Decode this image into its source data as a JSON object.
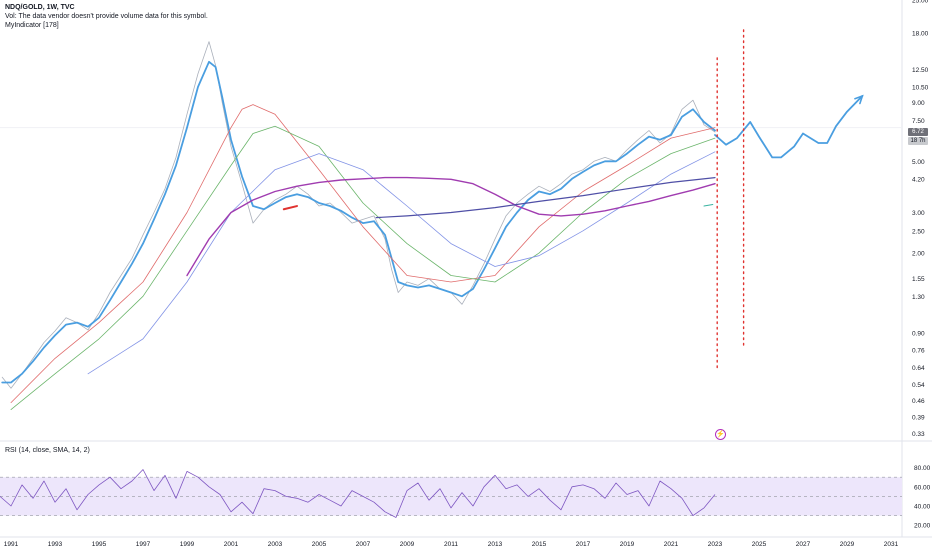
{
  "header": {
    "symbol_line": "NDQ/GOLD, 1W, TVC",
    "volume_note": "Vol: The data vendor doesn't provide volume data for this symbol.",
    "indicator": "MyIndicator [178]"
  },
  "rsi_header": "RSI (14, close, SMA, 14, 2)",
  "price_badge": "6.72",
  "time_badge": "18 7h",
  "chart_data": [
    {
      "type": "line",
      "scale": "log",
      "ylim": [
        0.31,
        25
      ],
      "xlim": [
        1990.5,
        2031.5
      ],
      "y_ticks": [
        "25.00",
        "18.00",
        "12.50",
        "10.50",
        "9.00",
        "7.50",
        "5.00",
        "4.20",
        "3.00",
        "2.50",
        "2.00",
        "1.55",
        "1.30",
        "0.90",
        "0.76",
        "0.64",
        "0.54",
        "0.46",
        "0.39",
        "0.33"
      ],
      "x_ticks": [
        "1991",
        "1993",
        "1995",
        "1997",
        "1999",
        "2001",
        "2003",
        "2005",
        "2007",
        "2009",
        "2011",
        "2013",
        "2015",
        "2017",
        "2019",
        "2021",
        "2023",
        "2025",
        "2027",
        "2029",
        "2031"
      ],
      "series": [
        {
          "color": "#aab0bb",
          "x": [
            1990.6,
            1991,
            1991.5,
            1992,
            1992.5,
            1993,
            1993.5,
            1994,
            1994.5,
            1995,
            1995.5,
            1996,
            1996.5,
            1997,
            1997.5,
            1998,
            1998.5,
            1999,
            1999.5,
            2000,
            2000.3,
            2000.6,
            2001,
            2001.5,
            2002,
            2002.5,
            2003,
            2003.5,
            2004,
            2004.5,
            2005,
            2005.5,
            2006,
            2006.5,
            2007,
            2007.5,
            2008,
            2008.3,
            2008.6,
            2009,
            2009.5,
            2010,
            2010.5,
            2011,
            2011.5,
            2012,
            2012.5,
            2013,
            2013.5,
            2014,
            2014.5,
            2015,
            2015.5,
            2016,
            2016.5,
            2017,
            2017.5,
            2018,
            2018.5,
            2019,
            2019.5,
            2020,
            2020.5,
            2021,
            2021.5,
            2022,
            2022.5,
            2023
          ],
          "y": [
            0.58,
            0.52,
            0.6,
            0.7,
            0.82,
            0.92,
            1.05,
            1.0,
            0.93,
            1.1,
            1.35,
            1.6,
            1.9,
            2.4,
            3.0,
            3.8,
            5.2,
            8.0,
            12.0,
            16.5,
            13.0,
            9.0,
            5.8,
            4.0,
            2.7,
            3.1,
            3.4,
            3.6,
            3.9,
            3.6,
            3.2,
            3.3,
            3.0,
            2.7,
            2.8,
            2.9,
            2.3,
            1.7,
            1.35,
            1.5,
            1.45,
            1.55,
            1.4,
            1.35,
            1.2,
            1.45,
            1.8,
            2.3,
            2.9,
            3.3,
            3.6,
            3.9,
            3.7,
            4.0,
            4.4,
            4.6,
            5.0,
            5.2,
            5.0,
            5.6,
            6.2,
            6.8,
            6.0,
            6.6,
            8.4,
            9.2,
            7.2,
            6.7
          ]
        },
        {
          "color": "#4a9ee0",
          "name": "",
          "x": [
            1990.6,
            1991,
            1991.5,
            1992,
            1992.5,
            1993,
            1993.5,
            1994,
            1994.5,
            1995,
            1995.5,
            1996,
            1996.5,
            1997,
            1997.5,
            1998,
            1998.5,
            1999,
            1999.5,
            2000,
            2000.3,
            2000.6,
            2001,
            2001.5,
            2002,
            2002.5,
            2003,
            2003.5,
            2004,
            2004.5,
            2005,
            2005.5,
            2006,
            2006.5,
            2007,
            2007.5,
            2008,
            2008.3,
            2008.6,
            2009,
            2009.5,
            2010,
            2010.5,
            2011,
            2011.5,
            2012,
            2012.5,
            2013,
            2013.5,
            2014,
            2014.5,
            2015,
            2015.5,
            2016,
            2016.5,
            2017,
            2017.5,
            2018,
            2018.5,
            2019,
            2019.5,
            2020,
            2020.5,
            2021,
            2021.5,
            2022,
            2022.5,
            2023
          ],
          "y": [
            0.55,
            0.55,
            0.6,
            0.68,
            0.78,
            0.88,
            0.98,
            1.0,
            0.96,
            1.05,
            1.25,
            1.5,
            1.8,
            2.2,
            2.8,
            3.6,
            4.8,
            7.0,
            10.5,
            13.5,
            12.8,
            9.5,
            6.2,
            4.3,
            3.2,
            3.1,
            3.3,
            3.5,
            3.6,
            3.5,
            3.3,
            3.2,
            3.05,
            2.85,
            2.7,
            2.75,
            2.4,
            1.9,
            1.5,
            1.45,
            1.42,
            1.45,
            1.4,
            1.35,
            1.3,
            1.4,
            1.7,
            2.1,
            2.6,
            3.0,
            3.4,
            3.7,
            3.6,
            3.8,
            4.2,
            4.5,
            4.8,
            5.0,
            5.0,
            5.4,
            5.9,
            6.4,
            6.2,
            6.5,
            7.8,
            8.4,
            7.4,
            6.8
          ]
        },
        {
          "color": "#e06b6b",
          "x": [
            1991,
            1993,
            1995,
            1997,
            1999,
            2001,
            2001.5,
            2002,
            2003,
            2005,
            2007,
            2009,
            2011,
            2013,
            2015,
            2017,
            2019,
            2021,
            2023
          ],
          "y": [
            0.45,
            0.7,
            1.0,
            1.5,
            3.0,
            7.0,
            8.4,
            8.8,
            8.0,
            4.6,
            2.6,
            1.6,
            1.5,
            1.6,
            2.6,
            3.7,
            4.8,
            6.3,
            7.0
          ]
        },
        {
          "color": "#6bb56b",
          "x": [
            1991,
            1993,
            1995,
            1997,
            1999,
            2001,
            2002,
            2003,
            2005,
            2007,
            2009,
            2011,
            2013,
            2015,
            2017,
            2019,
            2021,
            2023
          ],
          "y": [
            0.42,
            0.6,
            0.85,
            1.3,
            2.5,
            4.8,
            6.6,
            7.1,
            5.8,
            3.3,
            2.2,
            1.6,
            1.5,
            2.0,
            3.0,
            4.2,
            5.4,
            6.3
          ]
        },
        {
          "color": "#8293e6",
          "x": [
            1994.5,
            1997,
            1999,
            2001,
            2003,
            2005,
            2007,
            2009,
            2011,
            2013,
            2015,
            2017,
            2019,
            2021,
            2023
          ],
          "y": [
            0.6,
            0.85,
            1.5,
            3.0,
            4.6,
            5.4,
            4.6,
            3.2,
            2.2,
            1.75,
            1.95,
            2.5,
            3.3,
            4.4,
            5.5
          ]
        },
        {
          "color": "#a03cb0",
          "x": [
            1999,
            2000,
            2001,
            2002,
            2003,
            2004,
            2005,
            2006,
            2007,
            2008,
            2009,
            2010,
            2011,
            2012,
            2013,
            2014,
            2015,
            2016,
            2017,
            2018,
            2019,
            2020,
            2021,
            2022,
            2023
          ],
          "y": [
            1.6,
            2.3,
            3.0,
            3.4,
            3.7,
            3.9,
            4.05,
            4.15,
            4.2,
            4.25,
            4.25,
            4.22,
            4.18,
            4.0,
            3.6,
            3.2,
            2.95,
            2.9,
            2.95,
            3.05,
            3.2,
            3.35,
            3.55,
            3.75,
            4.0
          ]
        },
        {
          "color": "#4f4fa6",
          "x": [
            2007.6,
            2009,
            2011,
            2013,
            2015,
            2017,
            2019,
            2021,
            2023
          ],
          "y": [
            2.85,
            2.9,
            3.0,
            3.15,
            3.35,
            3.55,
            3.8,
            4.05,
            4.25
          ]
        },
        {
          "color": "#4a9ee0",
          "name": "",
          "x": [
            2023,
            2023.5,
            2024,
            2024.6,
            2025,
            2025.6,
            2026,
            2026.6,
            2027,
            2027.7,
            2028.1,
            2028.5,
            2029,
            2029.7
          ],
          "y": [
            6.5,
            5.9,
            6.3,
            7.4,
            6.4,
            5.2,
            5.2,
            5.8,
            6.6,
            6.0,
            6.0,
            7.1,
            8.2,
            9.6
          ]
        }
      ],
      "annotations": {
        "vertical_lines_x": [
          2023.1,
          2024.3
        ],
        "vertical_line_color": "#e0322f"
      }
    },
    {
      "type": "line",
      "title": "",
      "ylim": [
        15,
        90
      ],
      "y_ticks": [
        "80.00",
        "60.00",
        "40.00",
        "20.00"
      ],
      "bands": {
        "upper": 70,
        "middle": 50,
        "lower": 30,
        "fill": "#ede6fb"
      },
      "series": [
        {
          "color": "#7e57c2",
          "x": [
            1990.5,
            1991,
            1991.5,
            1992,
            1992.5,
            1993,
            1993.5,
            1994,
            1994.5,
            1995,
            1995.5,
            1996,
            1996.5,
            1997,
            1997.5,
            1998,
            1998.5,
            1999,
            1999.5,
            2000,
            2000.5,
            2001,
            2001.5,
            2002,
            2002.5,
            2003,
            2003.5,
            2004,
            2004.5,
            2005,
            2005.5,
            2006,
            2006.5,
            2007,
            2007.5,
            2008,
            2008.5,
            2009,
            2009.5,
            2010,
            2010.5,
            2011,
            2011.5,
            2012,
            2012.5,
            2013,
            2013.5,
            2014,
            2014.5,
            2015,
            2015.5,
            2016,
            2016.5,
            2017,
            2017.5,
            2018,
            2018.5,
            2019,
            2019.5,
            2020,
            2020.5,
            2021,
            2021.5,
            2022,
            2022.5,
            2023
          ],
          "y": [
            50,
            40,
            62,
            48,
            66,
            44,
            58,
            36,
            52,
            62,
            70,
            58,
            66,
            78,
            56,
            72,
            48,
            76,
            70,
            60,
            52,
            34,
            44,
            32,
            58,
            56,
            50,
            48,
            44,
            52,
            46,
            40,
            56,
            50,
            44,
            34,
            28,
            56,
            64,
            46,
            58,
            38,
            54,
            40,
            60,
            72,
            58,
            62,
            50,
            58,
            46,
            36,
            60,
            62,
            58,
            48,
            64,
            52,
            56,
            40,
            66,
            58,
            48,
            30,
            38,
            52
          ]
        }
      ]
    }
  ]
}
